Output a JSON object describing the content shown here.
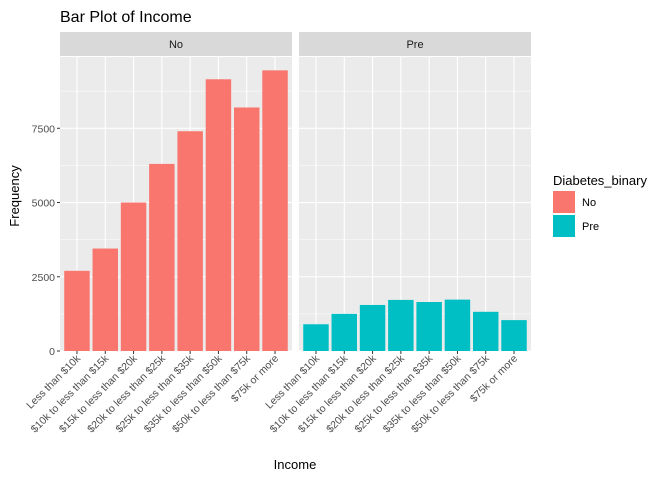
{
  "chart_data": {
    "type": "bar",
    "title": "Bar Plot of Income",
    "xlabel": "Income",
    "ylabel": "Frequency",
    "categories": [
      "Less than $10k",
      "$10k to less than $15k",
      "$15k to less than $20k",
      "$20k to less than $25k",
      "$25k to less than $35k",
      "$35k to less than $50k",
      "$50k to less than $75k",
      "$75k or more"
    ],
    "ylim": [
      0,
      9900
    ],
    "yticks": [
      0,
      2500,
      5000,
      7500
    ],
    "ytick_labels": [
      "0",
      "2500",
      "5000",
      "7500"
    ],
    "facets": [
      {
        "label": "No",
        "series": "No",
        "values": [
          2700,
          3450,
          5000,
          6300,
          7400,
          9150,
          8200,
          9450
        ]
      },
      {
        "label": "Pre",
        "series": "Pre",
        "values": [
          900,
          1250,
          1550,
          1720,
          1650,
          1730,
          1320,
          1040
        ]
      }
    ],
    "legend": {
      "title": "Diabetes_binary",
      "placement": "right",
      "entries": [
        {
          "label": "No",
          "color": "#F8766D"
        },
        {
          "label": "Pre",
          "color": "#00BFC4"
        }
      ]
    },
    "grid": true
  }
}
